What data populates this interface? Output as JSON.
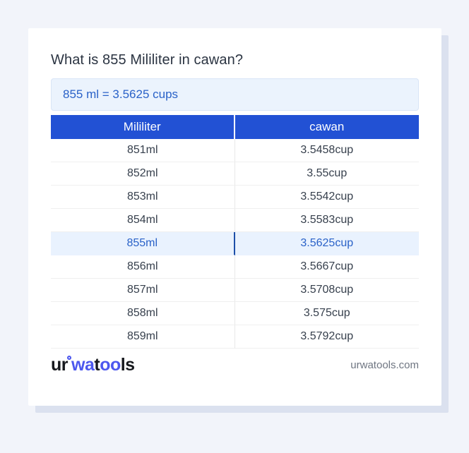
{
  "page": {
    "title": "What is 855 Mililiter in cawan?",
    "result": "855 ml = 3.5625 cups"
  },
  "table": {
    "headers": [
      "Mililiter",
      "cawan"
    ],
    "rows": [
      {
        "ml": "851ml",
        "cup": "3.5458cup",
        "highlight": false
      },
      {
        "ml": "852ml",
        "cup": "3.55cup",
        "highlight": false
      },
      {
        "ml": "853ml",
        "cup": "3.5542cup",
        "highlight": false
      },
      {
        "ml": "854ml",
        "cup": "3.5583cup",
        "highlight": false
      },
      {
        "ml": "855ml",
        "cup": "3.5625cup",
        "highlight": true
      },
      {
        "ml": "856ml",
        "cup": "3.5667cup",
        "highlight": false
      },
      {
        "ml": "857ml",
        "cup": "3.5708cup",
        "highlight": false
      },
      {
        "ml": "858ml",
        "cup": "3.575cup",
        "highlight": false
      },
      {
        "ml": "859ml",
        "cup": "3.5792cup",
        "highlight": false
      }
    ]
  },
  "footer": {
    "logo": {
      "part1": "ur",
      "ring_icon": "logo-ring-icon",
      "part2": "wa",
      "part3": "t",
      "part4": "oo",
      "part5": "ls"
    },
    "domain": "urwatools.com"
  },
  "colors": {
    "page_bg": "#f2f4fa",
    "card_bg": "#ffffff",
    "card_shadow": "#dbe1ef",
    "title_color": "#2b3442",
    "result_bg": "#ebf3fd",
    "result_border": "#d9e5f7",
    "accent_blue": "#2a62c8",
    "header_bg": "#2251d4",
    "header_text": "#ffffff",
    "row_text": "#37404d",
    "row_border": "#efefef",
    "col_divider": "#e9e9e9",
    "highlight_bg": "#e9f2fe",
    "highlight_divider": "#1d4fa8",
    "logo_dark": "#16181d",
    "logo_blue": "#4c57ee",
    "muted_text": "#6f7682"
  }
}
